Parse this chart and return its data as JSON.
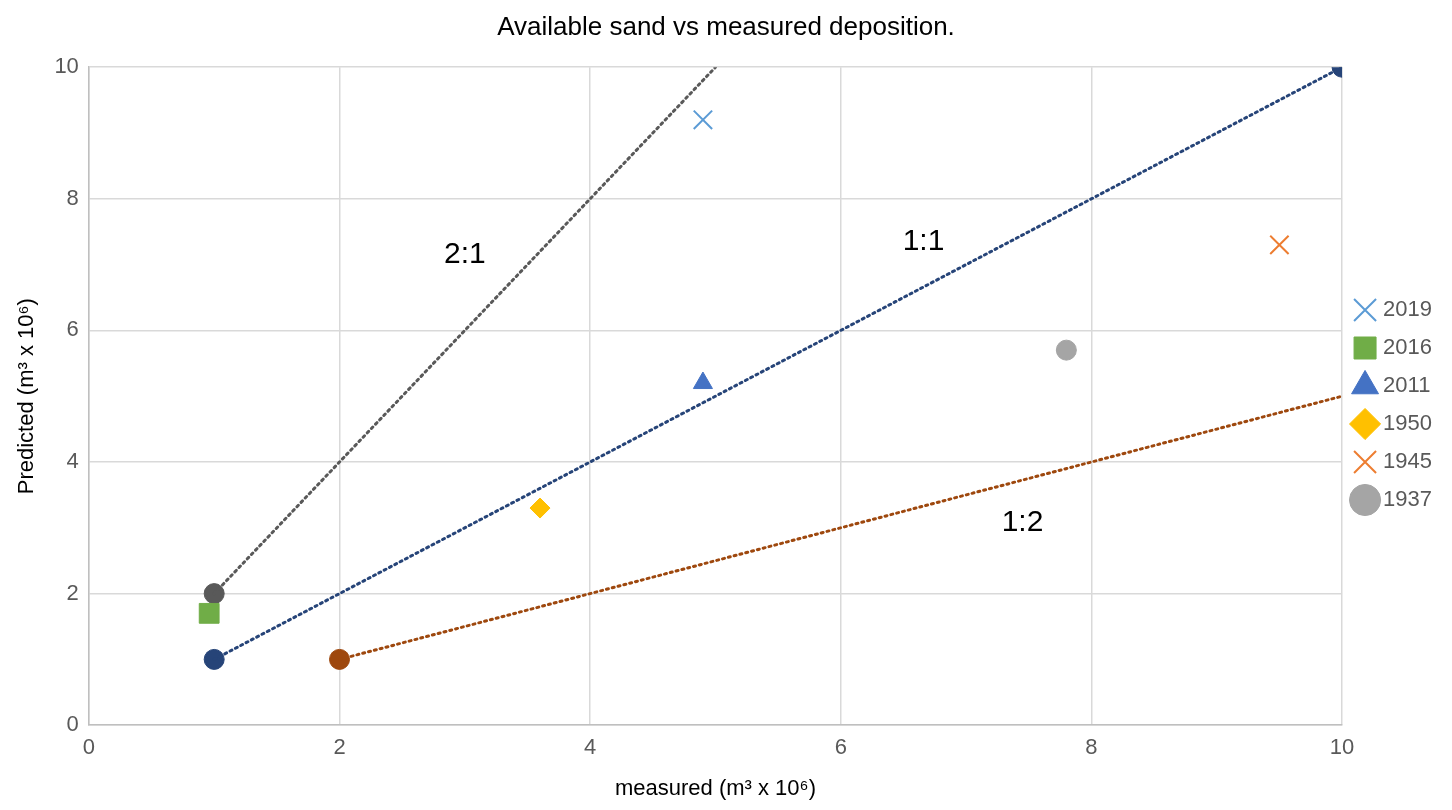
{
  "chart_data": {
    "type": "scatter",
    "title": "Available sand vs measured deposition.",
    "xlabel": "measured (m³ x 10⁶)",
    "ylabel": "Predicted (m³ x 10⁶)",
    "xlim": [
      0,
      10
    ],
    "ylim": [
      0,
      10
    ],
    "xticks": [
      0,
      2,
      4,
      6,
      8,
      10
    ],
    "yticks": [
      0,
      2,
      4,
      6,
      8,
      10
    ],
    "grid": true,
    "legend": "right",
    "series": [
      {
        "name": "2019",
        "color": "#5b9bd5",
        "marker": "cross",
        "x": [
          4.9
        ],
        "values": [
          9.2
        ]
      },
      {
        "name": "2016",
        "color": "#70ad47",
        "marker": "square",
        "x": [
          0.96
        ],
        "values": [
          1.7
        ]
      },
      {
        "name": "2011",
        "color": "#4472c4",
        "marker": "triangle",
        "x": [
          4.9
        ],
        "values": [
          5.2
        ]
      },
      {
        "name": "1950",
        "color": "#ffc000",
        "marker": "diamond",
        "x": [
          3.6
        ],
        "values": [
          3.3
        ]
      },
      {
        "name": "1945",
        "color": "#ed7d31",
        "marker": "cross",
        "x": [
          9.5
        ],
        "values": [
          7.3
        ]
      },
      {
        "name": "1937",
        "color": "#a5a5a5",
        "marker": "circle",
        "x": [
          7.8
        ],
        "values": [
          5.7
        ]
      },
      {
        "type": "line",
        "color": "#595959",
        "line_style": "dotted",
        "marker": "none",
        "x": [
          1,
          5
        ],
        "values": [
          2,
          10
        ]
      },
      {
        "type": "line",
        "color": "#264478",
        "line_style": "dotted",
        "marker": "none",
        "x": [
          1,
          10
        ],
        "values": [
          1,
          10
        ]
      },
      {
        "type": "line",
        "color": "#9e480e",
        "line_style": "dotted",
        "marker": "none",
        "x": [
          2,
          10
        ],
        "values": [
          1,
          5
        ]
      },
      {
        "marker": "circle",
        "colors": [
          "#595959",
          "#264478",
          "#264478",
          "#9e480e"
        ],
        "x": [
          1,
          1,
          10,
          2
        ],
        "values": [
          2,
          1,
          10,
          1
        ]
      }
    ],
    "annotations": [
      "2:1",
      "1:1",
      "1:2"
    ]
  }
}
